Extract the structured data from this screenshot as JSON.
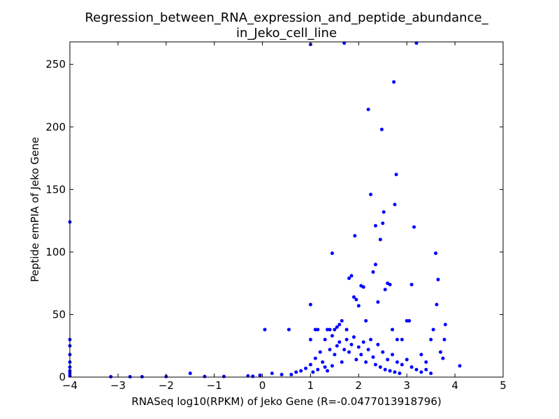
{
  "chart_data": {
    "type": "scatter",
    "title": [
      "Regression_between_RNA_expression_and_peptide_abundance_",
      "in_Jeko_cell_line"
    ],
    "xlabel": "RNASeq log10(RPKM) of Jeko Gene (R=-0.0477013918796)",
    "ylabel": "Peptide emPIA of Jeko Gene",
    "xlim": [
      -4,
      5
    ],
    "ylim": [
      0,
      268
    ],
    "xticks": [
      -4,
      -3,
      -2,
      -1,
      0,
      1,
      2,
      3,
      4,
      5
    ],
    "xtick_labels": [
      "−4",
      "−3",
      "−2",
      "−1",
      "0",
      "1",
      "2",
      "3",
      "4",
      "5"
    ],
    "yticks": [
      0,
      50,
      100,
      150,
      200,
      250
    ],
    "ytick_labels": [
      "0",
      "50",
      "100",
      "150",
      "200",
      "250"
    ],
    "grid": false,
    "marker_color": "#0000ff",
    "series": [
      {
        "points": [
          [
            -4.0,
            124
          ],
          [
            -4.0,
            30
          ],
          [
            -4.0,
            25
          ],
          [
            -4.0,
            18
          ],
          [
            -4.0,
            12
          ],
          [
            -4.0,
            8
          ],
          [
            -4.0,
            5
          ],
          [
            -4.0,
            3
          ],
          [
            -4.0,
            1
          ],
          [
            -3.15,
            0.3
          ],
          [
            -2.75,
            0.3
          ],
          [
            -2.5,
            0.3
          ],
          [
            -2.0,
            0.4
          ],
          [
            -1.5,
            3
          ],
          [
            -1.2,
            0.5
          ],
          [
            -0.8,
            0.5
          ],
          [
            -0.3,
            1
          ],
          [
            -0.2,
            0.6
          ],
          [
            -0.05,
            1.5
          ],
          [
            0.05,
            38
          ],
          [
            0.2,
            3
          ],
          [
            0.55,
            38
          ],
          [
            0.4,
            2
          ],
          [
            0.7,
            4
          ],
          [
            1.0,
            266
          ],
          [
            1.0,
            58
          ],
          [
            1.0,
            30
          ],
          [
            1.1,
            38
          ],
          [
            1.15,
            38
          ],
          [
            1.3,
            30
          ],
          [
            1.35,
            38
          ],
          [
            1.4,
            38
          ],
          [
            1.45,
            33
          ],
          [
            1.5,
            38
          ],
          [
            1.45,
            99
          ],
          [
            1.55,
            40
          ],
          [
            1.6,
            42
          ],
          [
            1.65,
            45
          ],
          [
            1.7,
            267
          ],
          [
            1.75,
            38
          ],
          [
            1.8,
            79
          ],
          [
            1.85,
            81
          ],
          [
            1.9,
            64
          ],
          [
            1.92,
            113
          ],
          [
            1.95,
            62
          ],
          [
            2.0,
            57
          ],
          [
            2.05,
            73
          ],
          [
            2.1,
            72
          ],
          [
            2.15,
            45
          ],
          [
            2.2,
            214
          ],
          [
            2.25,
            146
          ],
          [
            2.3,
            84
          ],
          [
            2.35,
            90
          ],
          [
            2.35,
            121
          ],
          [
            2.4,
            60
          ],
          [
            2.45,
            110
          ],
          [
            2.48,
            198
          ],
          [
            2.5,
            123
          ],
          [
            2.52,
            132
          ],
          [
            2.55,
            70
          ],
          [
            2.6,
            75
          ],
          [
            2.65,
            74
          ],
          [
            2.7,
            38
          ],
          [
            2.73,
            236
          ],
          [
            2.75,
            138
          ],
          [
            2.78,
            162
          ],
          [
            2.8,
            30
          ],
          [
            2.9,
            30
          ],
          [
            3.0,
            45
          ],
          [
            3.05,
            45
          ],
          [
            3.1,
            74
          ],
          [
            3.15,
            120
          ],
          [
            3.2,
            267
          ],
          [
            3.3,
            18
          ],
          [
            3.4,
            12
          ],
          [
            3.5,
            30
          ],
          [
            3.55,
            38
          ],
          [
            3.6,
            99
          ],
          [
            3.62,
            58
          ],
          [
            3.65,
            78
          ],
          [
            3.7,
            20
          ],
          [
            3.75,
            15
          ],
          [
            3.78,
            30
          ],
          [
            3.8,
            42
          ],
          [
            4.1,
            9
          ],
          [
            1.0,
            10
          ],
          [
            1.1,
            15
          ],
          [
            1.2,
            20
          ],
          [
            1.25,
            12
          ],
          [
            1.3,
            8
          ],
          [
            1.4,
            22
          ],
          [
            1.5,
            18
          ],
          [
            1.55,
            25
          ],
          [
            1.6,
            28
          ],
          [
            1.7,
            22
          ],
          [
            1.75,
            30
          ],
          [
            1.8,
            20
          ],
          [
            1.85,
            26
          ],
          [
            1.9,
            32
          ],
          [
            2.0,
            24
          ],
          [
            2.05,
            18
          ],
          [
            2.1,
            28
          ],
          [
            2.2,
            22
          ],
          [
            2.25,
            30
          ],
          [
            2.3,
            16
          ],
          [
            2.4,
            26
          ],
          [
            2.5,
            20
          ],
          [
            2.6,
            14
          ],
          [
            2.7,
            18
          ],
          [
            2.8,
            12
          ],
          [
            2.9,
            10
          ],
          [
            3.0,
            14
          ],
          [
            3.1,
            8
          ],
          [
            3.2,
            6
          ],
          [
            3.3,
            4
          ],
          [
            3.4,
            6
          ],
          [
            3.5,
            3
          ],
          [
            0.6,
            2
          ],
          [
            0.8,
            5
          ],
          [
            0.9,
            7
          ],
          [
            1.05,
            4
          ],
          [
            1.15,
            6
          ],
          [
            1.35,
            5
          ],
          [
            1.45,
            9
          ],
          [
            1.65,
            12
          ],
          [
            1.95,
            14
          ],
          [
            2.15,
            12
          ],
          [
            2.35,
            10
          ],
          [
            2.45,
            8
          ],
          [
            2.55,
            6
          ],
          [
            2.65,
            5
          ],
          [
            2.75,
            4
          ],
          [
            2.85,
            3
          ]
        ]
      }
    ]
  }
}
